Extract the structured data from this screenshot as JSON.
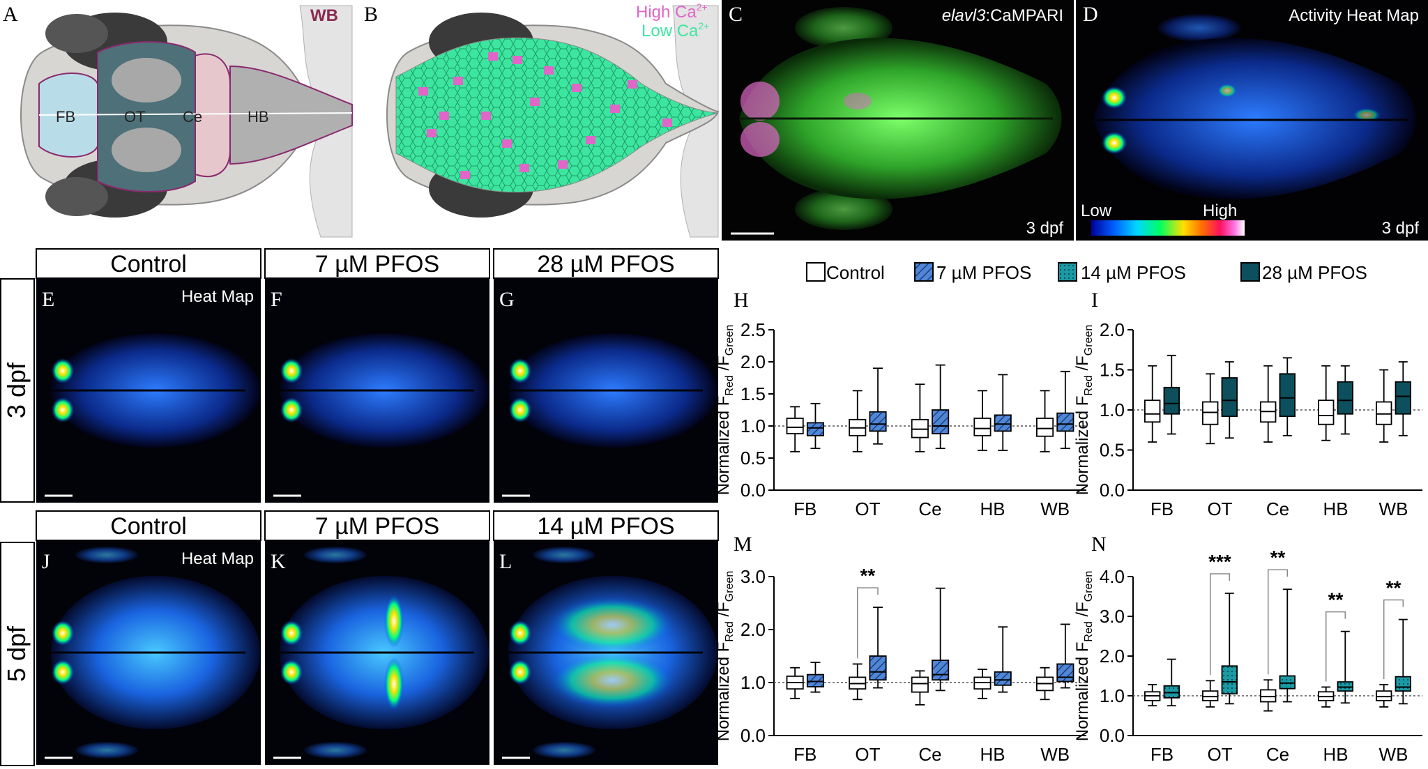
{
  "letters": {
    "A": "A",
    "B": "B",
    "C": "C",
    "D": "D",
    "E": "E",
    "F": "F",
    "G": "G",
    "H": "H",
    "I": "I",
    "J": "J",
    "K": "K",
    "L": "L",
    "M": "M",
    "N": "N"
  },
  "panelA": {
    "wb": "WB",
    "regions": [
      "FB",
      "OT",
      "Ce",
      "HB"
    ]
  },
  "panelB": {
    "high": "High Ca",
    "low": "Low Ca",
    "sup": "2+",
    "high_color": "#e066c8",
    "low_color": "#3de6a0"
  },
  "panelC": {
    "label_italic": "elavl3",
    "label_rest": ":CaMPARI",
    "age": "3 dpf"
  },
  "panelD": {
    "title": "Activity Heat Map",
    "low": "Low",
    "high": "High",
    "age": "3 dpf"
  },
  "rowLabels": {
    "r1": "3 dpf",
    "r2": "5 dpf"
  },
  "headers": {
    "e": "Control",
    "f": "7 µM PFOS",
    "g": "28 µM PFOS",
    "j": "Control",
    "k": "7 µM PFOS",
    "l": "14 µM PFOS"
  },
  "heatMapLabel": "Heat Map",
  "legend": [
    "Control",
    "7 µM PFOS",
    "14 µM PFOS",
    "28 µM PFOS"
  ],
  "colors": {
    "control": "#ffffff",
    "pfos7": "#4f86d6",
    "pfos14": "#1a9aa5",
    "pfos28": "#0d4f5c"
  },
  "chart_data": [
    {
      "panel": "H",
      "type": "box",
      "categories": [
        "FB",
        "OT",
        "Ce",
        "HB",
        "WB"
      ],
      "ylabel": "Normalized F_Red/F_Green",
      "ylim": [
        0,
        2.5
      ],
      "yticks": [
        "0.0",
        "0.5",
        "1.0",
        "1.5",
        "2.0",
        "2.5"
      ],
      "series": [
        {
          "name": "Control",
          "boxes": [
            [
              0.6,
              0.88,
              0.98,
              1.12,
              1.3
            ],
            [
              0.6,
              0.85,
              0.97,
              1.1,
              1.55
            ],
            [
              0.6,
              0.82,
              0.95,
              1.1,
              1.65
            ],
            [
              0.62,
              0.85,
              0.96,
              1.12,
              1.55
            ],
            [
              0.6,
              0.84,
              0.96,
              1.12,
              1.55
            ]
          ]
        },
        {
          "name": "7 µM PFOS",
          "boxes": [
            [
              0.65,
              0.85,
              0.97,
              1.05,
              1.35
            ],
            [
              0.72,
              0.92,
              1.03,
              1.22,
              1.9
            ],
            [
              0.65,
              0.88,
              1.0,
              1.25,
              1.95
            ],
            [
              0.62,
              0.92,
              1.03,
              1.17,
              1.8
            ],
            [
              0.65,
              0.92,
              1.03,
              1.2,
              1.85
            ]
          ]
        }
      ]
    },
    {
      "panel": "I",
      "type": "box",
      "categories": [
        "FB",
        "OT",
        "Ce",
        "HB",
        "WB"
      ],
      "ylabel": "Normalized F_Red/F_Green",
      "ylim": [
        0,
        2
      ],
      "yticks": [
        "0.0",
        "0.5",
        "1.0",
        "1.5",
        "2.0"
      ],
      "series": [
        {
          "name": "Control",
          "boxes": [
            [
              0.6,
              0.85,
              0.95,
              1.12,
              1.55
            ],
            [
              0.58,
              0.82,
              0.97,
              1.1,
              1.45
            ],
            [
              0.6,
              0.85,
              0.98,
              1.1,
              1.55
            ],
            [
              0.62,
              0.82,
              0.93,
              1.12,
              1.55
            ],
            [
              0.6,
              0.82,
              0.95,
              1.1,
              1.5
            ]
          ]
        },
        {
          "name": "28 µM PFOS",
          "boxes": [
            [
              0.7,
              0.95,
              1.08,
              1.28,
              1.68
            ],
            [
              0.65,
              0.92,
              1.12,
              1.4,
              1.6
            ],
            [
              0.68,
              0.92,
              1.15,
              1.45,
              1.65
            ],
            [
              0.7,
              0.95,
              1.12,
              1.35,
              1.55
            ],
            [
              0.68,
              0.95,
              1.17,
              1.35,
              1.6
            ]
          ]
        }
      ]
    },
    {
      "panel": "M",
      "type": "box",
      "categories": [
        "FB",
        "OT",
        "Ce",
        "HB",
        "WB"
      ],
      "ylabel": "Normalized F_Red/F_Green",
      "ylim": [
        0,
        3
      ],
      "yticks": [
        "0.0",
        "1.0",
        "2.0",
        "3.0"
      ],
      "series": [
        {
          "name": "Control",
          "boxes": [
            [
              0.7,
              0.88,
              1.0,
              1.12,
              1.28
            ],
            [
              0.68,
              0.88,
              0.98,
              1.1,
              1.35
            ],
            [
              0.58,
              0.82,
              0.98,
              1.1,
              1.22
            ],
            [
              0.7,
              0.88,
              1.0,
              1.1,
              1.25
            ],
            [
              0.68,
              0.85,
              0.98,
              1.1,
              1.28
            ]
          ]
        },
        {
          "name": "7 µM PFOS",
          "boxes": [
            [
              0.82,
              0.92,
              1.02,
              1.15,
              1.38
            ],
            [
              0.9,
              1.05,
              1.2,
              1.5,
              2.42
            ],
            [
              0.85,
              1.05,
              1.15,
              1.42,
              2.78
            ],
            [
              0.82,
              0.95,
              1.05,
              1.2,
              2.05
            ],
            [
              0.9,
              1.02,
              1.1,
              1.35,
              2.1
            ]
          ]
        }
      ],
      "significance": [
        {
          "category": "OT",
          "label": "**"
        }
      ]
    },
    {
      "panel": "N",
      "type": "box",
      "categories": [
        "FB",
        "OT",
        "Ce",
        "HB",
        "WB"
      ],
      "ylabel": "Normalized F_Red/F_Green",
      "ylim": [
        0,
        4
      ],
      "yticks": [
        "0.0",
        "1.0",
        "2.0",
        "3.0",
        "4.0"
      ],
      "series": [
        {
          "name": "Control",
          "boxes": [
            [
              0.75,
              0.88,
              1.0,
              1.1,
              1.28
            ],
            [
              0.72,
              0.88,
              0.98,
              1.12,
              1.38
            ],
            [
              0.62,
              0.85,
              0.98,
              1.15,
              1.4
            ],
            [
              0.72,
              0.88,
              0.98,
              1.1,
              1.22
            ],
            [
              0.72,
              0.88,
              0.98,
              1.12,
              1.28
            ]
          ]
        },
        {
          "name": "14 µM PFOS",
          "boxes": [
            [
              0.75,
              0.95,
              1.08,
              1.25,
              1.92
            ],
            [
              0.8,
              1.05,
              1.35,
              1.75,
              3.58
            ],
            [
              0.85,
              1.18,
              1.32,
              1.5,
              3.68
            ],
            [
              0.82,
              1.12,
              1.22,
              1.35,
              2.62
            ],
            [
              0.8,
              1.12,
              1.22,
              1.48,
              2.92
            ]
          ]
        }
      ],
      "significance": [
        {
          "category": "OT",
          "label": "***"
        },
        {
          "category": "Ce",
          "label": "**"
        },
        {
          "category": "HB",
          "label": "**"
        },
        {
          "category": "WB",
          "label": "**"
        }
      ]
    }
  ]
}
